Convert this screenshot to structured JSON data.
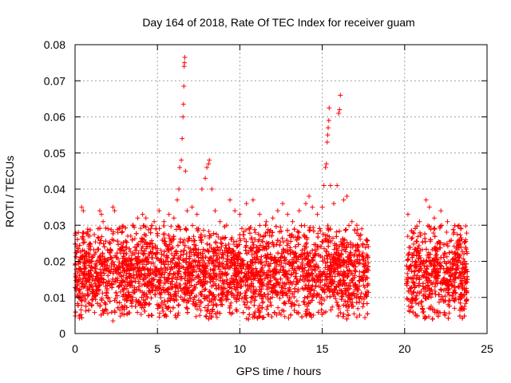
{
  "chart_data": {
    "type": "scatter",
    "title": "Day 164 of 2018, Rate Of TEC Index for receiver guam",
    "xlabel": "GPS time / hours",
    "ylabel": "ROTI / TECUs",
    "xlim": [
      0,
      25
    ],
    "ylim": [
      0,
      0.08
    ],
    "x_ticks": [
      "0",
      "5",
      "10",
      "15",
      "20",
      "25"
    ],
    "y_ticks": [
      "0",
      "0.01",
      "0.02",
      "0.03",
      "0.04",
      "0.05",
      "0.06",
      "0.07",
      "0.08"
    ],
    "grid": true,
    "marker": "+",
    "marker_color": "#ff0000",
    "data_gap_hours": [
      17.8,
      20.1
    ],
    "series": [
      {
        "color": "#ff0000",
        "points": [
          [
            0.1,
            0.024
          ],
          [
            0.2,
            0.028
          ],
          [
            0.3,
            0.021
          ],
          [
            0.5,
            0.026
          ],
          [
            0.4,
            0.013
          ],
          [
            0.6,
            0.009
          ],
          [
            0.2,
            0.012
          ],
          [
            0.3,
            0.018
          ],
          [
            0.4,
            0.035
          ],
          [
            0.5,
            0.034
          ],
          [
            0.9,
            0.027
          ],
          [
            1.0,
            0.016
          ],
          [
            1.2,
            0.022
          ],
          [
            1.4,
            0.029
          ],
          [
            1.5,
            0.034
          ],
          [
            1.6,
            0.033
          ],
          [
            1.7,
            0.031
          ],
          [
            2.0,
            0.029
          ],
          [
            2.3,
            0.035
          ],
          [
            2.4,
            0.034
          ],
          [
            2.3,
            0.0035
          ],
          [
            2.6,
            0.028
          ],
          [
            2.8,
            0.025
          ],
          [
            3.2,
            0.027
          ],
          [
            3.5,
            0.03
          ],
          [
            3.8,
            0.032
          ],
          [
            4.1,
            0.033
          ],
          [
            4.3,
            0.032
          ],
          [
            4.6,
            0.029
          ],
          [
            4.8,
            0.031
          ],
          [
            5.1,
            0.034
          ],
          [
            5.4,
            0.031
          ],
          [
            5.7,
            0.033
          ],
          [
            6.0,
            0.032
          ],
          [
            6.2,
            0.037
          ],
          [
            6.3,
            0.04
          ],
          [
            6.35,
            0.046
          ],
          [
            6.45,
            0.048
          ],
          [
            6.5,
            0.054
          ],
          [
            6.55,
            0.06
          ],
          [
            6.58,
            0.0635
          ],
          [
            6.6,
            0.0685
          ],
          [
            6.62,
            0.074
          ],
          [
            6.64,
            0.075
          ],
          [
            6.66,
            0.0765
          ],
          [
            6.7,
            0.045
          ],
          [
            6.8,
            0.034
          ],
          [
            7.1,
            0.035
          ],
          [
            7.4,
            0.033
          ],
          [
            7.7,
            0.04
          ],
          [
            7.9,
            0.043
          ],
          [
            8.0,
            0.046
          ],
          [
            8.1,
            0.047
          ],
          [
            8.15,
            0.048
          ],
          [
            8.3,
            0.04
          ],
          [
            8.5,
            0.034
          ],
          [
            8.8,
            0.031
          ],
          [
            9.2,
            0.03
          ],
          [
            9.4,
            0.037
          ],
          [
            9.7,
            0.034
          ],
          [
            10.0,
            0.033
          ],
          [
            10.4,
            0.036
          ],
          [
            10.8,
            0.037
          ],
          [
            11.2,
            0.033
          ],
          [
            11.6,
            0.031
          ],
          [
            12.0,
            0.032
          ],
          [
            12.3,
            0.034
          ],
          [
            12.6,
            0.036
          ],
          [
            12.9,
            0.033
          ],
          [
            13.2,
            0.031
          ],
          [
            13.6,
            0.034
          ],
          [
            14.0,
            0.036
          ],
          [
            14.2,
            0.038
          ],
          [
            14.4,
            0.035
          ],
          [
            14.7,
            0.033
          ],
          [
            15.0,
            0.035
          ],
          [
            15.1,
            0.041
          ],
          [
            15.2,
            0.046
          ],
          [
            15.25,
            0.047
          ],
          [
            15.3,
            0.053
          ],
          [
            15.33,
            0.055
          ],
          [
            15.36,
            0.057
          ],
          [
            15.4,
            0.059
          ],
          [
            15.42,
            0.0625
          ],
          [
            15.5,
            0.041
          ],
          [
            15.7,
            0.036
          ],
          [
            15.9,
            0.041
          ],
          [
            16.0,
            0.061
          ],
          [
            16.05,
            0.062
          ],
          [
            16.1,
            0.066
          ],
          [
            16.3,
            0.037
          ],
          [
            16.5,
            0.038
          ],
          [
            16.8,
            0.031
          ],
          [
            17.1,
            0.03
          ],
          [
            17.4,
            0.029
          ],
          [
            17.7,
            0.026
          ],
          [
            20.2,
            0.033
          ],
          [
            20.5,
            0.028
          ],
          [
            20.9,
            0.031
          ],
          [
            21.3,
            0.037
          ],
          [
            21.5,
            0.035
          ],
          [
            21.8,
            0.032
          ],
          [
            22.2,
            0.034
          ],
          [
            22.6,
            0.031
          ],
          [
            23.0,
            0.028
          ],
          [
            23.4,
            0.029
          ],
          [
            23.7,
            0.026
          ]
        ],
        "dense_band": {
          "y_min": 0.004,
          "y_max": 0.03,
          "typical_center": 0.017
        }
      }
    ]
  }
}
